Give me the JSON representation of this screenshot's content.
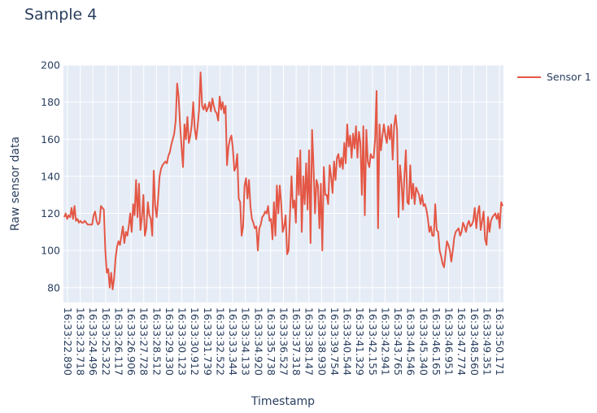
{
  "chart_data": {
    "type": "line",
    "title": "Sample 4",
    "xlabel": "Timestamp",
    "ylabel": "Raw sensor data",
    "ylim": [
      72,
      200
    ],
    "y_ticks": [
      80,
      100,
      120,
      140,
      160,
      180,
      200
    ],
    "grid": true,
    "legend_position": "top-right",
    "x_tick_labels": [
      "16:33:22.890",
      "16:33:23.718",
      "16:33:24.496",
      "16:33:25.322",
      "16:33:26.117",
      "16:33:26.906",
      "16:33:27.728",
      "16:33:28.512",
      "16:33:29.330",
      "16:33:30.123",
      "16:33:30.912",
      "16:33:31.739",
      "16:33:32.522",
      "16:33:33.344",
      "16:33:34.133",
      "16:33:34.920",
      "16:33:35.738",
      "16:33:36.527",
      "16:33:37.318",
      "16:33:38.147",
      "16:33:38.930",
      "16:33:39.754",
      "16:33:40.544",
      "16:33:41.329",
      "16:33:42.155",
      "16:33:42.941",
      "16:33:43.765",
      "16:33:44.546",
      "16:33:45.340",
      "16:33:46.165",
      "16:33:46.951",
      "16:33:47.774",
      "16:33:48.560",
      "16:33:49.351",
      "16:33:50.171"
    ],
    "series": [
      {
        "name": "Sensor 1",
        "color": "#e45745",
        "x_range_seconds": [
          22.89,
          50.7
        ],
        "values": [
          118,
          120,
          117,
          119,
          118,
          123,
          117,
          124,
          116,
          117,
          115,
          116,
          115,
          115,
          116,
          115,
          114,
          114,
          114,
          114,
          119,
          121,
          116,
          114,
          115,
          124,
          123,
          122,
          100,
          88,
          90,
          80,
          88,
          79,
          85,
          96,
          102,
          105,
          103,
          108,
          113,
          104,
          110,
          108,
          113,
          120,
          110,
          125,
          119,
          138,
          118,
          136,
          111,
          118,
          130,
          108,
          112,
          126,
          119,
          117,
          108,
          143,
          124,
          118,
          128,
          140,
          144,
          146,
          147,
          148,
          147,
          151,
          153,
          157,
          160,
          163,
          170,
          190,
          183,
          168,
          156,
          145,
          168,
          160,
          172,
          158,
          162,
          168,
          180,
          166,
          160,
          167,
          176,
          196,
          178,
          176,
          179,
          175,
          177,
          180,
          175,
          182,
          178,
          175,
          174,
          170,
          183,
          176,
          180,
          174,
          178,
          146,
          156,
          160,
          162,
          155,
          143,
          145,
          152,
          128,
          126,
          108,
          113,
          135,
          139,
          128,
          138,
          124,
          117,
          115,
          112,
          113,
          100,
          112,
          114,
          118,
          119,
          121,
          120,
          124,
          116,
          117,
          106,
          126,
          108,
          135,
          120,
          135,
          125,
          110,
          113,
          119,
          98,
          100,
          120,
          140,
          123,
          127,
          115,
          150,
          130,
          154,
          110,
          140,
          125,
          147,
          122,
          154,
          104,
          165,
          145,
          120,
          138,
          135,
          112,
          136,
          100,
          145,
          130,
          130,
          125,
          146,
          140,
          131,
          148,
          138,
          150,
          152,
          145,
          150,
          144,
          158,
          147,
          168,
          156,
          162,
          150,
          163,
          155,
          167,
          150,
          164,
          158,
          130,
          167,
          119,
          165,
          148,
          145,
          152,
          150,
          150,
          160,
          186,
          112,
          168,
          154,
          162,
          168,
          162,
          158,
          167,
          160,
          168,
          149,
          167,
          173,
          165,
          118,
          146,
          137,
          122,
          140,
          154,
          126,
          125,
          146,
          128,
          136,
          125,
          134,
          132,
          130,
          125,
          130,
          124,
          125,
          122,
          117,
          110,
          113,
          108,
          108,
          125,
          111,
          110,
          100,
          97,
          93,
          91,
          98,
          105,
          103,
          100,
          94,
          100,
          107,
          110,
          111,
          112,
          108,
          110,
          115,
          113,
          110,
          114,
          116,
          113,
          114,
          116,
          123,
          112,
          120,
          124,
          111,
          116,
          121,
          106,
          103,
          118,
          110,
          116,
          118,
          119,
          120,
          117,
          120,
          112,
          126,
          124
        ]
      }
    ]
  }
}
